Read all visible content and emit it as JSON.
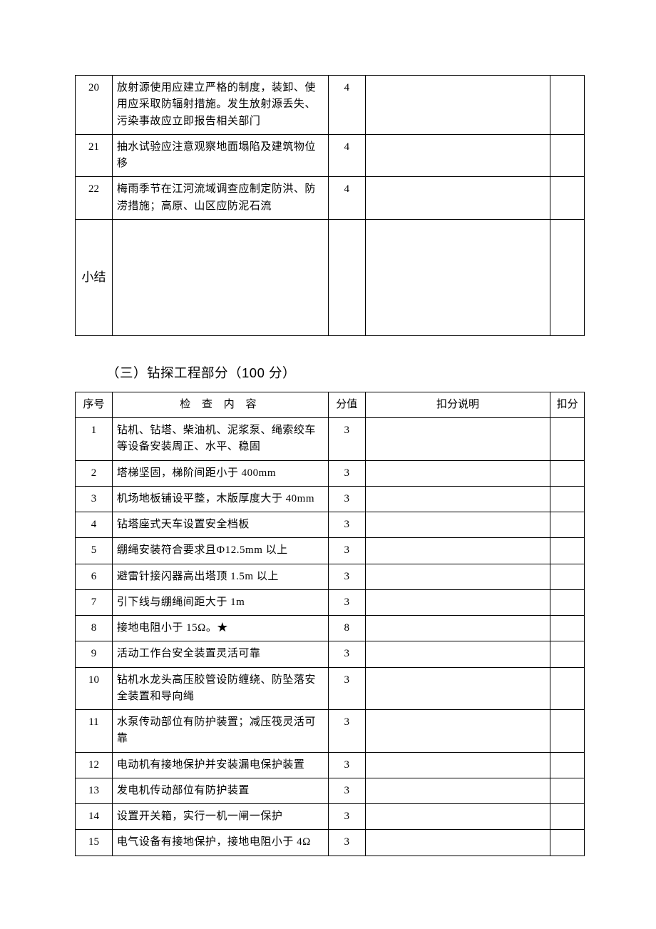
{
  "table1": {
    "rows": [
      {
        "seq": "20",
        "content": "放射源使用应建立严格的制度，装卸、使用应采取防辐射措施。发生放射源丢失、污染事故应立即报告相关部门",
        "score": "4"
      },
      {
        "seq": "21",
        "content": "抽水试验应注意观察地面塌陷及建筑物位移",
        "score": "4"
      },
      {
        "seq": "22",
        "content": "梅雨季节在江河流域调查应制定防洪、防涝措施；高原、山区应防泥石流",
        "score": "4"
      }
    ],
    "summary_label": "小结"
  },
  "section_title": "（三）钻探工程部分（100 分）",
  "table2": {
    "headers": {
      "seq": "序号",
      "content": "检 查 内 容",
      "score": "分值",
      "explain": "扣分说明",
      "deduct": "扣分"
    },
    "rows": [
      {
        "seq": "1",
        "content": "钻机、钻塔、柴油机、泥浆泵、绳索绞车等设备安装周正、水平、稳固",
        "score": "3"
      },
      {
        "seq": "2",
        "content": "塔梯坚固，梯阶间距小于 400mm",
        "score": "3"
      },
      {
        "seq": "3",
        "content": "机场地板铺设平整，木版厚度大于 40mm",
        "score": "3"
      },
      {
        "seq": "4",
        "content": "钻塔座式天车设置安全档板",
        "score": "3"
      },
      {
        "seq": "5",
        "content": "绷绳安装符合要求且Ф12.5mm 以上",
        "score": "3"
      },
      {
        "seq": "6",
        "content": "避雷针接闪器高出塔顶 1.5m 以上",
        "score": "3"
      },
      {
        "seq": "7",
        "content": "引下线与绷绳间距大于 1m",
        "score": "3"
      },
      {
        "seq": "8",
        "content": "接地电阻小于 15Ω。★",
        "score": "8"
      },
      {
        "seq": "9",
        "content": "活动工作台安全装置灵活可靠",
        "score": "3"
      },
      {
        "seq": "10",
        "content": "钻机水龙头高压胶管设防缠绕、防坠落安全装置和导向绳",
        "score": "3"
      },
      {
        "seq": "11",
        "content": "水泵传动部位有防护装置；减压筏灵活可靠",
        "score": "3"
      },
      {
        "seq": "12",
        "content": "电动机有接地保护并安装漏电保护装置",
        "score": "3"
      },
      {
        "seq": "13",
        "content": "发电机传动部位有防护装置",
        "score": "3"
      },
      {
        "seq": "14",
        "content": "设置开关箱，实行一机一闸一保护",
        "score": "3"
      },
      {
        "seq": "15",
        "content": "电气设备有接地保护，接地电阻小于 4Ω",
        "score": "3"
      }
    ]
  }
}
